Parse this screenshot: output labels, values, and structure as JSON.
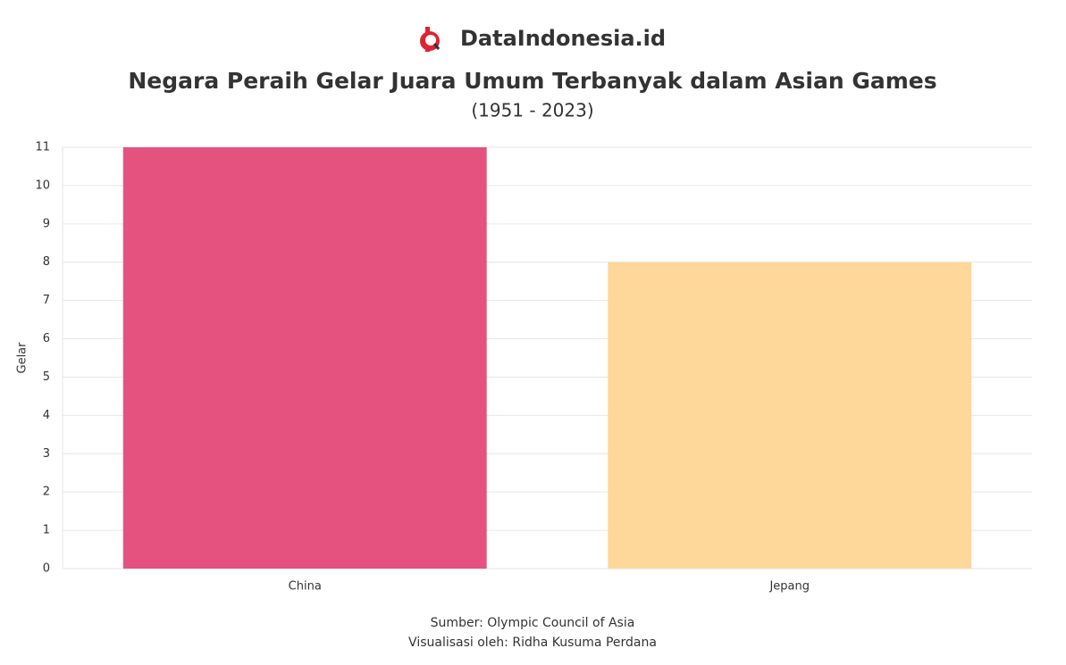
{
  "brand": "DataIndonesia.id",
  "chart_data": {
    "type": "bar",
    "title": "Negara Peraih Gelar Juara Umum Terbanyak dalam Asian Games",
    "subtitle": "(1951 - 2023)",
    "y_label": "Gelar",
    "categories": [
      "China",
      "Jepang"
    ],
    "values": [
      11,
      8
    ],
    "colors": [
      "#e5527f",
      "#fed79b"
    ],
    "ylim": [
      0,
      11
    ],
    "yticks": [
      0,
      1,
      2,
      3,
      4,
      5,
      6,
      7,
      8,
      9,
      10,
      11
    ],
    "grid": true,
    "source": "Sumber: Olympic Council of Asia",
    "credit": "Visualisasi oleh: Ridha Kusuma Perdana"
  }
}
